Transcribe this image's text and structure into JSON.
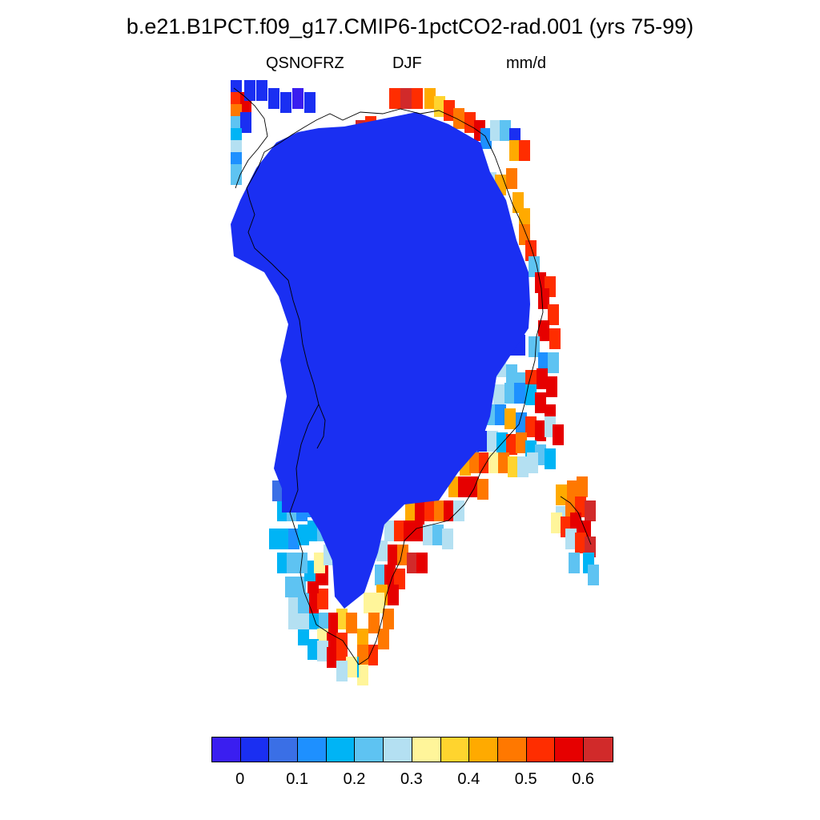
{
  "title": "b.e21.B1PCT.f09_g17.CMIP6-1pctCO2-rad.001 (yrs 75-99)",
  "subtitle": {
    "variable": "QSNOFRZ",
    "season": "DJF",
    "units": "mm/d"
  },
  "colorbar": {
    "colors": [
      "#3a1ef0",
      "#1a2ff2",
      "#3a6fe6",
      "#1e90ff",
      "#00b4f5",
      "#5ec3f2",
      "#b4e0f2",
      "#fff59a",
      "#ffd42e",
      "#ffaa00",
      "#ff7800",
      "#ff2d00",
      "#e60000",
      "#d12a2a"
    ],
    "tick_labels": [
      "0",
      "0.1",
      "0.2",
      "0.3",
      "0.4",
      "0.5",
      "0.6"
    ]
  },
  "map": {
    "ice_sheet_color": "#1a2ff2",
    "coastline_color": "#000000"
  }
}
